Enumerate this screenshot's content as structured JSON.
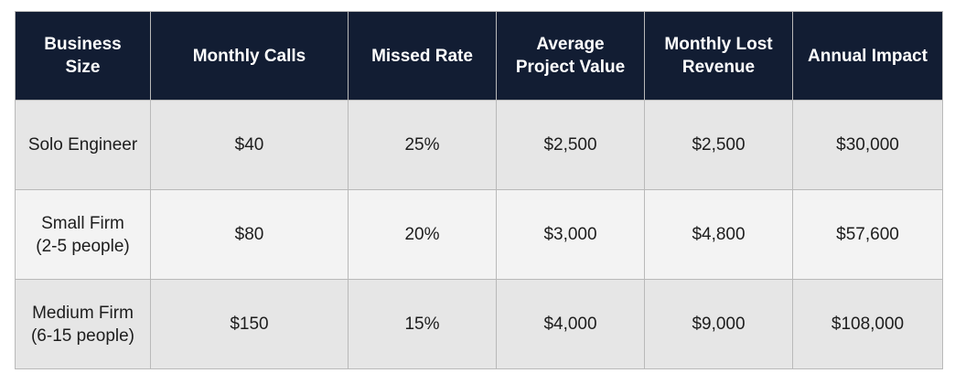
{
  "table": {
    "headers": [
      "Business\nSize",
      "Monthly Calls",
      "Missed Rate",
      "Average\nProject Value",
      "Monthly Lost\nRevenue",
      "Annual Impact"
    ],
    "rows": [
      [
        "Solo Engineer",
        "$40",
        "25%",
        "$2,500",
        "$2,500",
        "$30,000"
      ],
      [
        "Small Firm\n(2-5 people)",
        "$80",
        "20%",
        "$3,000",
        "$4,800",
        "$57,600"
      ],
      [
        "Medium Firm\n(6-15 people)",
        "$150",
        "15%",
        "$4,000",
        "$9,000",
        "$108,000"
      ]
    ]
  },
  "colors": {
    "header_background": "#121d33",
    "header_text": "#ffffff",
    "row_odd": "#e6e6e6",
    "row_even": "#f3f3f3",
    "border": "#b9b9b9"
  }
}
